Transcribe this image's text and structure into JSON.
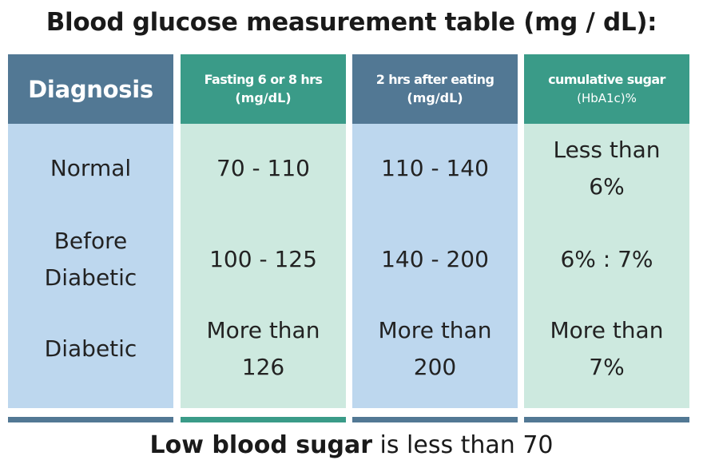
{
  "title": "Blood glucose measurement table (mg / dL):",
  "columns": [
    {
      "header": "Diagnosis",
      "subheader": ""
    },
    {
      "header": "Fasting 6 or 8 hrs",
      "subheader": "(mg/dL)"
    },
    {
      "header": "2 hrs after eating",
      "subheader": "(mg/dL)"
    },
    {
      "header": "cumulative sugar",
      "subheader": "(HbA1c)%"
    }
  ],
  "rows": [
    {
      "diagnosis": [
        "Normal"
      ],
      "fasting": [
        "70 - 110"
      ],
      "after_eating": [
        "110 - 140"
      ],
      "hba1c": [
        "Less than",
        "6%"
      ]
    },
    {
      "diagnosis": [
        "Before",
        "Diabetic"
      ],
      "fasting": [
        "100 - 125"
      ],
      "after_eating": [
        "140 - 200"
      ],
      "hba1c": [
        "6% : 7%"
      ]
    },
    {
      "diagnosis": [
        "Diabetic"
      ],
      "fasting": [
        "More than",
        "126"
      ],
      "after_eating": [
        "More than",
        "200"
      ],
      "hba1c": [
        "More than",
        "7%"
      ]
    }
  ],
  "footer": {
    "bold": "Low blood sugar",
    "rest": " is less than 70"
  },
  "colors": {
    "blue_header": "#527894",
    "green_header": "#3a9b88",
    "blue_body": "#bdd7ee",
    "green_body": "#cde9df"
  }
}
